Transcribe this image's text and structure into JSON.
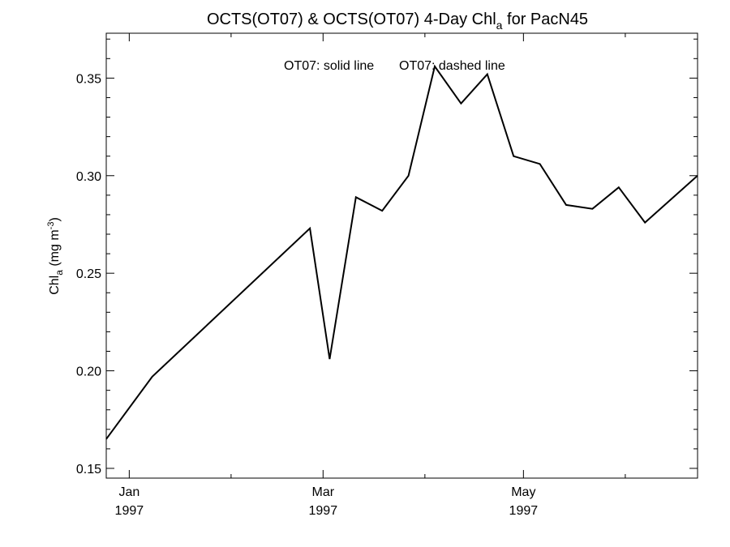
{
  "chart_data": {
    "type": "line",
    "title": "OCTS(OT07) & OCTS(OT07) 4-Day Chl",
    "title_subscript": "a",
    "title_suffix": " for PacN45",
    "ylabel_main": "Chl",
    "ylabel_subscript": "a",
    "ylabel_unit_prefix": " (mg m",
    "ylabel_unit_exponent": "-3",
    "ylabel_unit_suffix": ")",
    "annotations": [
      "OT07: solid line",
      "OT07: dashed line"
    ],
    "ylim": [
      0.145,
      0.373
    ],
    "yticks": [
      "0.15",
      "0.20",
      "0.25",
      "0.30",
      "0.35"
    ],
    "xlim": [
      "1996-12-25",
      "1997-06-23"
    ],
    "xticks": [
      {
        "date": "1997-01-01",
        "month": "Jan",
        "year": "1997"
      },
      {
        "date": "1997-03-01",
        "month": "Mar",
        "year": "1997"
      },
      {
        "date": "1997-05-01",
        "month": "May",
        "year": "1997"
      }
    ],
    "grid": false,
    "series": [
      {
        "style": "solid",
        "x": [
          "1996-12-25",
          "1997-01-08",
          "1997-02-25",
          "1997-03-03",
          "1997-03-11",
          "1997-03-19",
          "1997-03-27",
          "1997-04-04",
          "1997-04-12",
          "1997-04-20",
          "1997-04-28",
          "1997-05-06",
          "1997-05-14",
          "1997-05-22",
          "1997-05-30",
          "1997-06-07",
          "1997-06-23"
        ],
        "y": [
          0.165,
          0.197,
          0.273,
          0.206,
          0.289,
          0.282,
          0.3,
          0.356,
          0.337,
          0.352,
          0.31,
          0.306,
          0.285,
          0.283,
          0.294,
          0.276,
          0.3
        ]
      }
    ]
  }
}
